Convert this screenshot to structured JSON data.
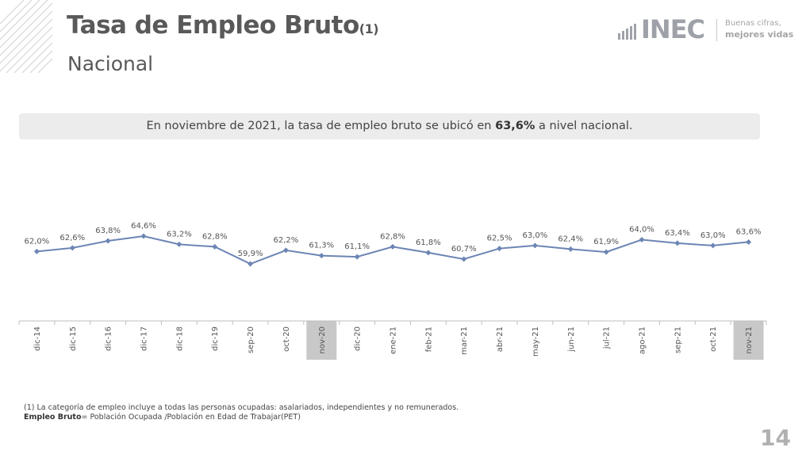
{
  "header": {
    "title": "Tasa de Empleo Bruto",
    "title_note": "(1)",
    "subtitle": "Nacional"
  },
  "logo": {
    "name": "INEC",
    "tagline_1": "Buenas cifras,",
    "tagline_2": "mejores vidas"
  },
  "banner": {
    "text_before": "En noviembre de 2021, la tasa de empleo bruto se ubicó en ",
    "highlight": "63,6%",
    "text_after": " a nivel nacional."
  },
  "chart_data": {
    "type": "line",
    "categories": [
      "dic-14",
      "dic-15",
      "dic-16",
      "dic-17",
      "dic-18",
      "dic-19",
      "sep-20",
      "oct-20",
      "nov-20",
      "dic-20",
      "ene-21",
      "feb-21",
      "mar-21",
      "abr-21",
      "may-21",
      "jun-21",
      "jul-21",
      "ago-21",
      "sep-21",
      "oct-21",
      "nov-21"
    ],
    "values": [
      62.0,
      62.6,
      63.8,
      64.6,
      63.2,
      62.8,
      59.9,
      62.2,
      61.3,
      61.1,
      62.8,
      61.8,
      60.7,
      62.5,
      63.0,
      62.4,
      61.9,
      64.0,
      63.4,
      63.0,
      63.6
    ],
    "labels": [
      "62,0%",
      "62,6%",
      "63,8%",
      "64,6%",
      "63,2%",
      "62,8%",
      "59,9%",
      "62,2%",
      "61,3%",
      "61,1%",
      "62,8%",
      "61,8%",
      "60,7%",
      "62,5%",
      "63,0%",
      "62,4%",
      "61,9%",
      "64,0%",
      "63,4%",
      "63,0%",
      "63,6%"
    ],
    "highlighted_categories": [
      "nov-20",
      "nov-21"
    ],
    "line_color": "#6c85b4",
    "highlight_color": "#c8c8c8"
  },
  "footnotes": {
    "note_1": "(1) La categoría de empleo incluye a todas las personas ocupadas: asalariados, independientes y no remunerados.",
    "definition_label": "Empleo Bruto",
    "definition_text": "= Población Ocupada /Población en Edad de Trabajar(PET)"
  },
  "page_number": "14"
}
